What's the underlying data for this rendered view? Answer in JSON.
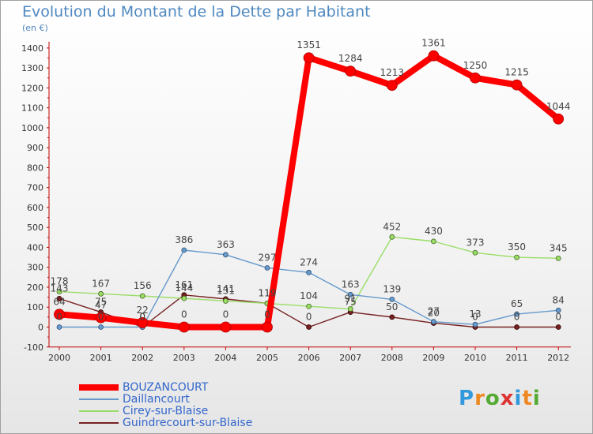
{
  "header": {
    "title": "Evolution du Montant de la Dette par Habitant",
    "subtitle": "(en €)"
  },
  "chart_data": {
    "type": "line",
    "title": "Evolution du Montant de la Dette par Habitant",
    "subtitle": "(en €)",
    "xlabel": "",
    "ylabel": "(en €)",
    "ylim": [
      -100,
      1400
    ],
    "yticks": [
      -100,
      0,
      100,
      200,
      300,
      400,
      500,
      600,
      700,
      800,
      900,
      1000,
      1100,
      1200,
      1300,
      1400
    ],
    "categories": [
      "2000",
      "2001",
      "2002",
      "2003",
      "2004",
      "2005",
      "2006",
      "2007",
      "2008",
      "2009",
      "2010",
      "2011",
      "2012"
    ],
    "grid": false,
    "legend_position": "bottom-left",
    "series": [
      {
        "name": "BOUZANCOURT",
        "color": "#ff0000",
        "values": [
          64,
          47,
          22,
          0,
          0,
          0,
          1351,
          1284,
          1213,
          1361,
          1250,
          1215,
          1044
        ],
        "labels": [
          "64",
          "47",
          "22",
          "0",
          "0",
          "0",
          "1351",
          "1284",
          "1213",
          "1361",
          "1250",
          "1215",
          "1044"
        ]
      },
      {
        "name": "Daillancourt",
        "color": "#6699cc",
        "values": [
          0,
          0,
          0,
          386,
          363,
          297,
          274,
          163,
          139,
          27,
          13,
          65,
          84
        ],
        "labels": [
          "0",
          "0",
          "0",
          "386",
          "363",
          "297",
          "274",
          "163",
          "139",
          "27",
          "13",
          "65",
          "84"
        ]
      },
      {
        "name": "Cirey-sur-Blaise",
        "color": "#99dd66",
        "values": [
          178,
          167,
          156,
          144,
          131,
          119,
          104,
          91,
          452,
          430,
          373,
          350,
          345
        ],
        "labels": [
          "178",
          "167",
          "156",
          "144",
          "131",
          "119",
          "104",
          "91",
          "452",
          "430",
          "373",
          "350",
          "345"
        ]
      },
      {
        "name": "Guindrecourt-sur-Blaise",
        "color": "#772222",
        "values": [
          143,
          75,
          0,
          161,
          141,
          119,
          0,
          75,
          50,
          20,
          0,
          0,
          0
        ],
        "labels": [
          "143",
          "75",
          "0",
          "161",
          "141",
          "119",
          "0",
          "75",
          "50",
          "20",
          "0",
          "0",
          "0"
        ]
      }
    ]
  },
  "logo": {
    "text": "Proxiti"
  }
}
